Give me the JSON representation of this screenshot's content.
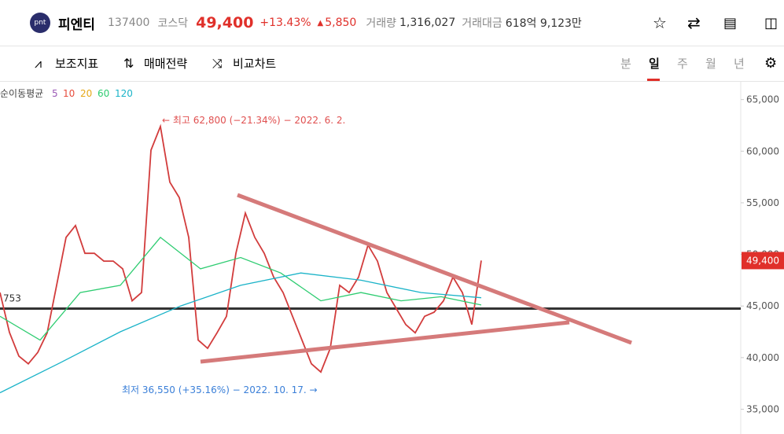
{
  "header": {
    "logo": "pnt",
    "name": "피엔티",
    "code": "137400",
    "market": "코스닥",
    "price": "49,400",
    "change_pct": "+13.43%",
    "change": "5,850",
    "volume_label": "거래량",
    "volume": "1,316,027",
    "amount_label": "거래대금",
    "amount": "618억 9,123만"
  },
  "toolbar": {
    "items": [
      "보조지표",
      "매매전략",
      "비교차트"
    ],
    "periods": [
      "분",
      "일",
      "주",
      "월",
      "년"
    ],
    "selected_period": "일"
  },
  "chart_data": {
    "type": "line",
    "ma_legend": {
      "title": "순이동평균",
      "periods": [
        5,
        10,
        20,
        60,
        120
      ],
      "colors": [
        "#9b59b6",
        "#e74c3c",
        "#e6a817",
        "#2ecc71",
        "#1ab3c8"
      ]
    },
    "series": [
      {
        "color": "#d23c3c",
        "values": [
          46300,
          42450,
          40150,
          39400,
          40500,
          42400,
          47000,
          51650,
          52800,
          50100,
          50100,
          49350,
          49350,
          48600,
          45500,
          46300,
          60100,
          62400,
          57000,
          55500,
          51650,
          41700,
          40900,
          42400,
          44000,
          50100,
          54000,
          51650,
          50100,
          47800,
          46300,
          44000,
          41700,
          39400,
          38600,
          40900,
          47000,
          46300,
          47800,
          50900,
          49350,
          46300,
          44750,
          43200,
          42400,
          44000,
          44400,
          45500,
          47800,
          46300,
          43200,
          49400
        ]
      },
      {
        "color": "#2ecc71",
        "values": [
          44000,
          41700,
          46300,
          47000,
          51650,
          48600,
          49700,
          48200,
          45500,
          46300,
          45500,
          45900,
          45100
        ]
      },
      {
        "color": "#1ab3c8",
        "values": [
          36600,
          39500,
          42500,
          45000,
          47000,
          48200,
          47500,
          46300,
          45800
        ]
      }
    ],
    "ylim": [
      32600,
      66800
    ],
    "yticks": [
      {
        "value": 35000,
        "label": "35,000"
      },
      {
        "value": 40000,
        "label": "40,000"
      },
      {
        "value": 45000,
        "label": "45,000"
      },
      {
        "value": 50000,
        "label": "50,000"
      },
      {
        "value": 55000,
        "label": "55,000"
      },
      {
        "value": 60000,
        "label": "60,000"
      },
      {
        "value": 65000,
        "label": "65,000"
      }
    ],
    "current_price": {
      "value": 49400,
      "label": "49,400"
    },
    "reference_line": {
      "value": 44753,
      "label": "753"
    },
    "high_annotation": "← 최고 62,800 (−21.34%) − 2022. 6. 2.",
    "low_annotation": "최저 36,550 (+35.16%) − 2022. 10. 17. →"
  }
}
